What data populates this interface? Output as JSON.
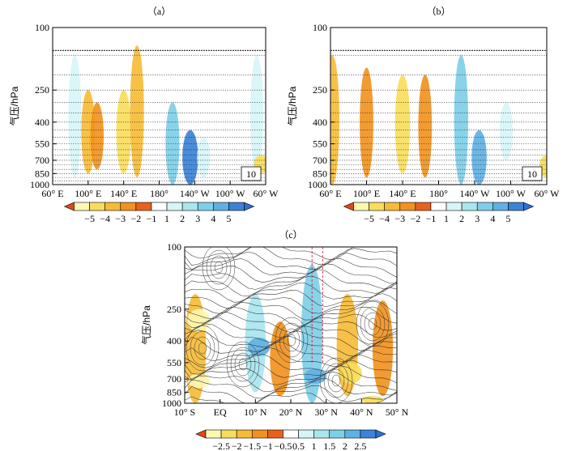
{
  "chart_data": [
    {
      "type": "heatmap",
      "title": "（a）",
      "ylabel": "气压/hPa",
      "xticks": [
        "60° E",
        "100° E",
        "140° E",
        "180°",
        "140° W",
        "100° W",
        "60° W"
      ],
      "yticks": [
        "100",
        "250",
        "400",
        "550",
        "700",
        "850",
        "1000"
      ],
      "y_log_scale": true,
      "ylim": [
        1000,
        100
      ],
      "reference_vector": "10",
      "colorbar": {
        "labels": [
          "−5",
          "−4",
          "−3",
          "−2",
          "−1",
          "1",
          "2",
          "3",
          "4",
          "5"
        ]
      },
      "anomaly_regions": [
        {
          "lon": 100,
          "p_top": 250,
          "p_bot": 850,
          "value": -2
        },
        {
          "lon": 110,
          "p_top": 300,
          "p_bot": 800,
          "value": -1.5
        },
        {
          "lon": 140,
          "p_top": 250,
          "p_bot": 850,
          "value": -3
        },
        {
          "lon": 155,
          "p_top": 130,
          "p_bot": 900,
          "value": -2
        },
        {
          "lon": 85,
          "p_top": 150,
          "p_bot": 900,
          "value": 1
        },
        {
          "lon": 195,
          "p_top": 300,
          "p_bot": 1000,
          "value": 2
        },
        {
          "lon": 215,
          "p_top": 450,
          "p_bot": 1000,
          "value": 4
        },
        {
          "lon": 230,
          "p_top": 500,
          "p_bot": 900,
          "value": 1
        },
        {
          "lon": 290,
          "p_top": 150,
          "p_bot": 850,
          "value": 1
        },
        {
          "lon": 295,
          "p_top": 650,
          "p_bot": 850,
          "value": -3
        }
      ]
    },
    {
      "type": "heatmap",
      "title": "（b）",
      "ylabel": "气压/hPa",
      "xticks": [
        "60° E",
        "100° E",
        "140° E",
        "180°",
        "140° W",
        "100° W",
        "60° W"
      ],
      "yticks": [
        "100",
        "250",
        "400",
        "550",
        "700",
        "850",
        "1000"
      ],
      "y_log_scale": true,
      "ylim": [
        1000,
        100
      ],
      "reference_vector": "10",
      "colorbar": {
        "labels": [
          "−5",
          "−4",
          "−3",
          "−2",
          "−1",
          "1",
          "2",
          "3",
          "4",
          "5"
        ]
      },
      "anomaly_regions": [
        {
          "lon": 62,
          "p_top": 150,
          "p_bot": 1000,
          "value": -2
        },
        {
          "lon": 100,
          "p_top": 180,
          "p_bot": 900,
          "value": -1.5
        },
        {
          "lon": 140,
          "p_top": 200,
          "p_bot": 850,
          "value": -3
        },
        {
          "lon": 165,
          "p_top": 200,
          "p_bot": 900,
          "value": -1.5
        },
        {
          "lon": 205,
          "p_top": 150,
          "p_bot": 1000,
          "value": 2
        },
        {
          "lon": 225,
          "p_top": 450,
          "p_bot": 1000,
          "value": 3
        },
        {
          "lon": 255,
          "p_top": 300,
          "p_bot": 700,
          "value": 1
        },
        {
          "lon": 300,
          "p_top": 650,
          "p_bot": 900,
          "value": -3
        }
      ]
    },
    {
      "type": "heatmap",
      "title": "（c）",
      "ylabel": "气压/hPa",
      "xticks": [
        "10° S",
        "EQ",
        "10° N",
        "20° N",
        "30° N",
        "40° N",
        "50° N"
      ],
      "yticks": [
        "100",
        "250",
        "400",
        "550",
        "700",
        "850",
        "1000"
      ],
      "y_log_scale": true,
      "ylim": [
        1000,
        100
      ],
      "colorbar": {
        "labels": [
          "−2.5",
          "−2",
          "−1.5",
          "−1",
          "−0.5",
          "0.5",
          "1",
          "1.5",
          "2",
          "2.5"
        ]
      },
      "anomaly_regions": [
        {
          "lat": -7,
          "p_top": 200,
          "p_bot": 1000,
          "value": -1.5
        },
        {
          "lat": -6,
          "p_top": 250,
          "p_bot": 350,
          "value": -2.5
        },
        {
          "lat": -6,
          "p_top": 650,
          "p_bot": 800,
          "value": -2.5
        },
        {
          "lat": 10,
          "p_top": 200,
          "p_bot": 850,
          "value": 1
        },
        {
          "lat": 11,
          "p_top": 380,
          "p_bot": 500,
          "value": 2
        },
        {
          "lat": 17,
          "p_top": 300,
          "p_bot": 900,
          "value": -0.8
        },
        {
          "lat": 26,
          "p_top": 130,
          "p_bot": 1000,
          "value": 1.5
        },
        {
          "lat": 27,
          "p_top": 600,
          "p_bot": 750,
          "value": 2
        },
        {
          "lat": 36,
          "p_top": 200,
          "p_bot": 900,
          "value": -1.5
        },
        {
          "lat": 37,
          "p_top": 550,
          "p_bot": 750,
          "value": -2
        },
        {
          "lat": 46,
          "p_top": 220,
          "p_bot": 900,
          "value": -0.8
        },
        {
          "lat": 43,
          "p_top": 900,
          "p_bot": 1000,
          "value": -2
        }
      ]
    }
  ],
  "colors": {
    "neg": [
      "#e8621c",
      "#f19220",
      "#f6bc38",
      "#f8dd5c",
      "#fdf7b2"
    ],
    "pos": [
      "#d7f5f7",
      "#a9e6ee",
      "#7ecfe8",
      "#5fb1e3",
      "#3c82d6"
    ],
    "neutral": "#ffffff",
    "vector": "#222222"
  }
}
